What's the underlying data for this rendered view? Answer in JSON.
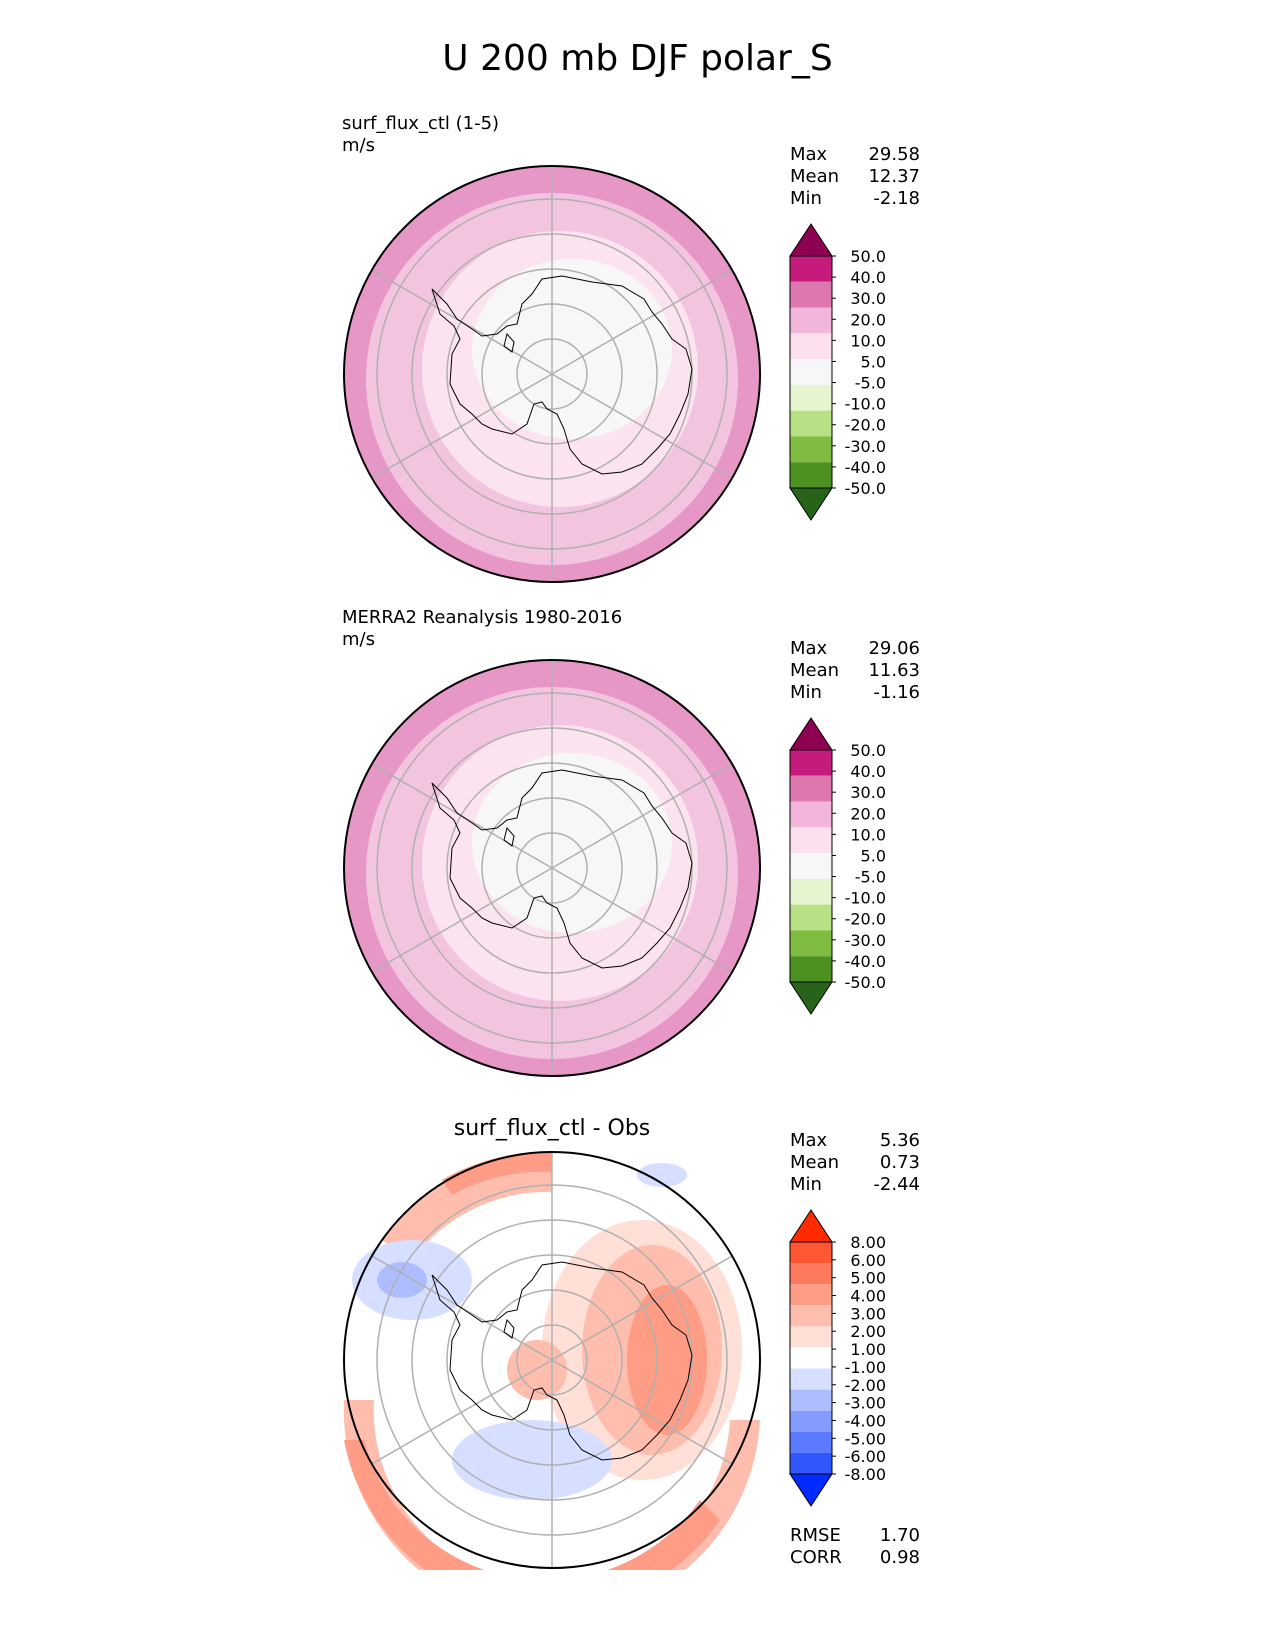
{
  "title": "U 200 mb DJF polar_S",
  "panels": [
    {
      "id": "test",
      "title_line1": "surf_flux_ctl (1-5)",
      "title_line2": "m/s",
      "stats": [
        {
          "label": "Max",
          "value": "29.58"
        },
        {
          "label": "Mean",
          "value": "12.37"
        },
        {
          "label": "Min",
          "value": "-2.18"
        }
      ],
      "colorbar": {
        "labels": [
          "50.0",
          "40.0",
          "30.0",
          "20.0",
          "10.0",
          "5.0",
          "-5.0",
          "-10.0",
          "-20.0",
          "-30.0",
          "-40.0",
          "-50.0"
        ],
        "colors": [
          "#8e0152",
          "#c51b7d",
          "#de77ae",
          "#f1b6da",
          "#fde0ef",
          "#f7f7f7",
          "#e6f5d0",
          "#b8e186",
          "#7fbc41",
          "#4d9221",
          "#276419"
        ]
      }
    },
    {
      "id": "reference",
      "title_line1": "MERRA2 Reanalysis 1980-2016",
      "title_line2": "m/s",
      "stats": [
        {
          "label": "Max",
          "value": "29.06"
        },
        {
          "label": "Mean",
          "value": "11.63"
        },
        {
          "label": "Min",
          "value": "-1.16"
        }
      ],
      "colorbar": {
        "labels": [
          "50.0",
          "40.0",
          "30.0",
          "20.0",
          "10.0",
          "5.0",
          "-5.0",
          "-10.0",
          "-20.0",
          "-30.0",
          "-40.0",
          "-50.0"
        ]
      }
    },
    {
      "id": "diff",
      "title": "surf_flux_ctl - Obs",
      "stats": [
        {
          "label": "Max",
          "value": "5.36"
        },
        {
          "label": "Mean",
          "value": "0.73"
        },
        {
          "label": "Min",
          "value": "-2.44"
        }
      ],
      "colorbar": {
        "labels": [
          "8.00",
          "6.00",
          "5.00",
          "4.00",
          "3.00",
          "2.00",
          "1.00",
          "-1.00",
          "-2.00",
          "-3.00",
          "-4.00",
          "-5.00",
          "-6.00",
          "-8.00"
        ],
        "colors": [
          "#ff2a00",
          "#ff5733",
          "#ff7a5c",
          "#ff9c85",
          "#ffbdad",
          "#ffdfd6",
          "#ffffff",
          "#d6dfff",
          "#adbdff",
          "#859cff",
          "#5c7aff",
          "#3357ff",
          "#002aff"
        ]
      },
      "metrics": [
        {
          "label": "RMSE",
          "value": "1.70"
        },
        {
          "label": "CORR",
          "value": "0.98"
        }
      ]
    }
  ],
  "map_colors": {
    "outer": "#e797c6",
    "mid": "#f3c4e0",
    "inner": "#fbe3ef",
    "land": "#f7f7f7",
    "grid": "#b0b0b0",
    "coast": "#000000"
  }
}
